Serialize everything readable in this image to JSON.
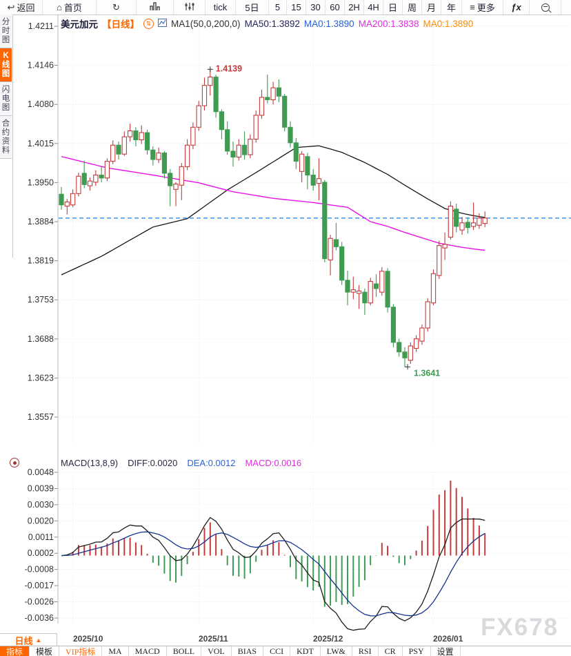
{
  "toolbar": {
    "back": "返回",
    "back_icon": "↩",
    "home": "首页",
    "home_icon": "⌂",
    "refresh_icon": "↻",
    "tick": "tick",
    "five_day": "5日",
    "five": "5",
    "fifteen": "15",
    "thirty": "30",
    "sixty": "60",
    "two_hour": "2H",
    "four_hour": "4H",
    "day": "日",
    "week": "周",
    "month": "月",
    "year": "年",
    "more": "更多",
    "more_icon": "≡",
    "fx": "ƒx"
  },
  "sidebar": {
    "items": [
      "分时图",
      "K线图",
      "闪电图",
      "合约资料"
    ]
  },
  "chart_header": {
    "symbol": "美元加元",
    "period": "【日线】",
    "ma_title": "MA1(50,0,200,0)",
    "ma50": "MA50:1.3892",
    "ma0_blue": "MA0:1.3890",
    "ma200": "MA200:1.3838",
    "ma0_orange": "MA0:1.3890"
  },
  "macd_header": {
    "title": "MACD(13,8,9)",
    "diff": "DIFF:0.0020",
    "dea": "DEA:0.0012",
    "macd": "MACD:0.0016"
  },
  "bottom": {
    "period": "日线",
    "period_arrow": "▲",
    "tabs": [
      "指标",
      "模板",
      "VIP指标",
      "MA",
      "MACD",
      "BOLL",
      "VOL",
      "BIAS",
      "CCI",
      "KDT",
      "LW&",
      "RSI",
      "CR",
      "PSY",
      "设置"
    ]
  },
  "watermark": "FX678",
  "chart_data": {
    "type": "candlestick+macd",
    "title": "美元加元 日线 (USD/CAD daily)",
    "price_axis_labels": [
      "1.4211",
      "1.4146",
      "1.4080",
      "1.4015",
      "1.3950",
      "1.3884",
      "1.3819",
      "1.3753",
      "1.3688",
      "1.3623",
      "1.3557"
    ],
    "price_axis_top_value": 1.4211,
    "price_axis_bottom_value": 1.3557,
    "macd_axis_labels": [
      "0.0048",
      "0.0039",
      "0.0030",
      "0.0020",
      "0.0011",
      "0.0002",
      "-0.0008",
      "-0.0017",
      "-0.0026",
      "-0.0036"
    ],
    "macd_axis_top_value": 0.0048,
    "macd_axis_bottom_value": -0.0036,
    "x_labels": [
      "2025/10",
      "2025/11",
      "2025/12",
      "2026/01"
    ],
    "month_start_indices": [
      2,
      24,
      44,
      65
    ],
    "current_price": 1.389,
    "high_annotation": {
      "text": "1.4139",
      "index": 26,
      "price": 1.4139
    },
    "low_annotation": {
      "text": "1.3641",
      "index": 60,
      "price": 1.3641
    },
    "macd_params": {
      "fast": 8,
      "slow": 13,
      "signal": 9
    },
    "candles": [
      [
        1.393,
        1.3942,
        1.3904,
        1.3912
      ],
      [
        1.391,
        1.3922,
        1.3896,
        1.3917
      ],
      [
        1.3912,
        1.3938,
        1.3908,
        1.3931
      ],
      [
        1.3931,
        1.3966,
        1.3926,
        1.396
      ],
      [
        1.3965,
        1.3986,
        1.394,
        1.3946
      ],
      [
        1.3944,
        1.3958,
        1.3936,
        1.3952
      ],
      [
        1.395,
        1.397,
        1.3944,
        1.3962
      ],
      [
        1.3962,
        1.3976,
        1.395,
        1.3957
      ],
      [
        1.3957,
        1.399,
        1.3952,
        1.3985
      ],
      [
        1.3985,
        1.402,
        1.398,
        1.4012
      ],
      [
        1.4012,
        1.4018,
        1.3988,
        1.3997
      ],
      [
        1.3997,
        1.4035,
        1.3994,
        1.4026
      ],
      [
        1.4026,
        1.4048,
        1.4018,
        1.4036
      ],
      [
        1.4036,
        1.4042,
        1.401,
        1.4021
      ],
      [
        1.4021,
        1.4045,
        1.4014,
        1.4033
      ],
      [
        1.4033,
        1.4038,
        1.3996,
        1.4004
      ],
      [
        1.4004,
        1.401,
        1.3978,
        1.3988
      ],
      [
        1.3988,
        1.4008,
        1.3982,
        1.3999
      ],
      [
        1.3999,
        1.4002,
        1.3956,
        1.3965
      ],
      [
        1.3965,
        1.3972,
        1.391,
        1.3944
      ],
      [
        1.3938,
        1.395,
        1.391,
        1.3947
      ],
      [
        1.3945,
        1.3982,
        1.392,
        1.3976
      ],
      [
        1.3976,
        1.4022,
        1.397,
        1.4012
      ],
      [
        1.4012,
        1.405,
        1.4005,
        1.4042
      ],
      [
        1.4042,
        1.4086,
        1.4036,
        1.4078
      ],
      [
        1.4078,
        1.4125,
        1.407,
        1.4112
      ],
      [
        1.4112,
        1.4139,
        1.4095,
        1.4126
      ],
      [
        1.4126,
        1.413,
        1.4058,
        1.4068
      ],
      [
        1.4068,
        1.4072,
        1.4022,
        1.4038
      ],
      [
        1.4038,
        1.4052,
        1.3996,
        1.4002
      ],
      [
        1.4002,
        1.4018,
        1.3976,
        1.3992
      ],
      [
        1.3992,
        1.4022,
        1.3986,
        1.4012
      ],
      [
        1.4012,
        1.4035,
        1.3988,
        1.3996
      ],
      [
        1.3996,
        1.403,
        1.399,
        1.4022
      ],
      [
        1.4022,
        1.407,
        1.4016,
        1.4062
      ],
      [
        1.4062,
        1.4105,
        1.4056,
        1.4092
      ],
      [
        1.4092,
        1.413,
        1.4082,
        1.4088
      ],
      [
        1.4088,
        1.4118,
        1.408,
        1.4108
      ],
      [
        1.4108,
        1.4122,
        1.4084,
        1.4094
      ],
      [
        1.4094,
        1.4098,
        1.4035,
        1.4042
      ],
      [
        1.4042,
        1.4052,
        1.4008,
        1.4016
      ],
      [
        1.4016,
        1.4024,
        1.3972,
        1.3985
      ],
      [
        1.3968,
        1.4002,
        1.395,
        1.3997
      ],
      [
        1.3993,
        1.3999,
        1.3938,
        1.3962
      ],
      [
        1.3962,
        1.3972,
        1.3936,
        1.3945
      ],
      [
        1.3948,
        1.399,
        1.392,
        1.3956
      ],
      [
        1.395,
        1.3954,
        1.3816,
        1.3822
      ],
      [
        1.382,
        1.3862,
        1.3794,
        1.3856
      ],
      [
        1.3854,
        1.3882,
        1.3836,
        1.3842
      ],
      [
        1.3842,
        1.385,
        1.3778,
        1.3786
      ],
      [
        1.3786,
        1.3802,
        1.3744,
        1.3766
      ],
      [
        1.3766,
        1.3792,
        1.3754,
        1.377
      ],
      [
        1.3764,
        1.3778,
        1.3738,
        1.3768
      ],
      [
        1.3766,
        1.3772,
        1.3728,
        1.3748
      ],
      [
        1.3748,
        1.379,
        1.3744,
        1.3784
      ],
      [
        1.378,
        1.3796,
        1.3758,
        1.3772
      ],
      [
        1.3766,
        1.3808,
        1.376,
        1.3801
      ],
      [
        1.3801,
        1.3806,
        1.3732,
        1.3741
      ],
      [
        1.3741,
        1.3746,
        1.3674,
        1.3682
      ],
      [
        1.3682,
        1.3688,
        1.3658,
        1.3666
      ],
      [
        1.3666,
        1.3674,
        1.3641,
        1.3656
      ],
      [
        1.3652,
        1.3682,
        1.3646,
        1.3676
      ],
      [
        1.3672,
        1.3694,
        1.3666,
        1.3688
      ],
      [
        1.3684,
        1.3712,
        1.3678,
        1.3706
      ],
      [
        1.3706,
        1.3756,
        1.37,
        1.375
      ],
      [
        1.3748,
        1.3804,
        1.3744,
        1.3797
      ],
      [
        1.3794,
        1.3852,
        1.3788,
        1.3844
      ],
      [
        1.384,
        1.3866,
        1.382,
        1.3846
      ],
      [
        1.3858,
        1.3918,
        1.3854,
        1.391
      ],
      [
        1.3905,
        1.3914,
        1.3866,
        1.3876
      ],
      [
        1.387,
        1.3892,
        1.3862,
        1.3882
      ],
      [
        1.3883,
        1.389,
        1.3864,
        1.3874
      ],
      [
        1.3876,
        1.3916,
        1.387,
        1.3882
      ],
      [
        1.3878,
        1.3898,
        1.3872,
        1.389
      ],
      [
        1.3881,
        1.3901,
        1.3875,
        1.389
      ]
    ],
    "ma50_points": [
      [
        0,
        1.3795
      ],
      [
        7,
        1.3826
      ],
      [
        16,
        1.3875
      ],
      [
        22,
        1.3889
      ],
      [
        29,
        1.3937
      ],
      [
        35,
        1.3972
      ],
      [
        41,
        1.4008
      ],
      [
        45,
        1.4011
      ],
      [
        49,
        1.4
      ],
      [
        53,
        1.3983
      ],
      [
        57,
        1.3963
      ],
      [
        60,
        1.3945
      ],
      [
        64,
        1.3922
      ],
      [
        67,
        1.3906
      ],
      [
        70,
        1.3898
      ],
      [
        72,
        1.3894
      ],
      [
        74,
        1.3891
      ]
    ],
    "ma200_points": [
      [
        0,
        1.3993
      ],
      [
        8,
        1.3974
      ],
      [
        16,
        1.3962
      ],
      [
        24,
        1.3949
      ],
      [
        30,
        1.3934
      ],
      [
        37,
        1.3923
      ],
      [
        44,
        1.3916
      ],
      [
        50,
        1.3908
      ],
      [
        54,
        1.3884
      ],
      [
        57,
        1.3876
      ],
      [
        60,
        1.3866
      ],
      [
        63,
        1.3857
      ],
      [
        66,
        1.3848
      ],
      [
        70,
        1.3841
      ],
      [
        74,
        1.3836
      ]
    ],
    "colors": {
      "up": "#c53b3b",
      "down": "#3f9b51",
      "ma50": "#151515",
      "ma200": "#e812e8",
      "price_line": "#2b8cf0",
      "diff": "#1c1c1c",
      "dea": "#16348f",
      "grid": "#e6e6e6",
      "vgrid": "#ededed",
      "axis_text": "#333333",
      "accent": "#ff6600"
    }
  }
}
